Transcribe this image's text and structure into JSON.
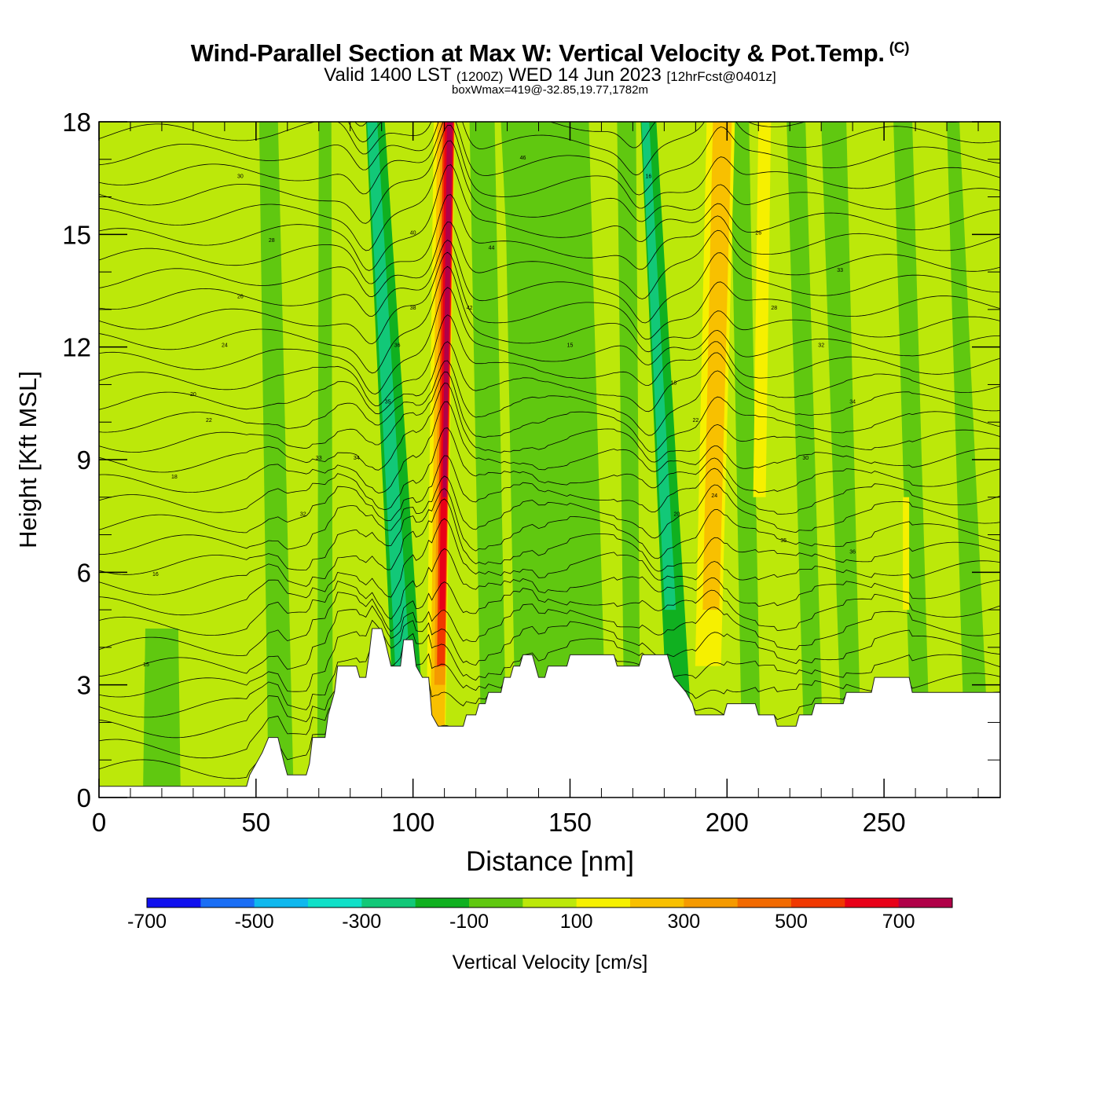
{
  "header": {
    "title_main": "Wind-Parallel Section at Max W: Vertical Velocity & Pot.Temp.",
    "title_mark": "(C)",
    "valid_a": "Valid 1400 LST",
    "valid_b": "(1200Z)",
    "valid_c": "WED 14 Jun 2023",
    "valid_d": "[12hrFcst@0401z]",
    "box_info": "boxWmax=419@-32.85,19.77,1782m"
  },
  "chart_data": {
    "type": "heatmap",
    "xlabel": "Distance [nm]",
    "ylabel": "Height [Kft MSL]",
    "xlim": [
      0,
      287
    ],
    "ylim": [
      0,
      18
    ],
    "x_ticks": [
      0,
      50,
      100,
      150,
      200,
      250
    ],
    "y_ticks": [
      0,
      3,
      6,
      9,
      12,
      15,
      18
    ],
    "colorbar": {
      "label": "Vertical Velocity [cm/s]",
      "tick_labels": [
        "-700",
        "-500",
        "-300",
        "-100",
        "100",
        "300",
        "500",
        "700"
      ],
      "colors": [
        "#1010ee",
        "#1a6ef5",
        "#0fb8ee",
        "#10e0c8",
        "#12c878",
        "#10b020",
        "#60c810",
        "#bce80a",
        "#f6f000",
        "#f8c000",
        "#f59a00",
        "#f26a00",
        "#f03800",
        "#e80018",
        "#b00048"
      ]
    },
    "updraft_bands": [
      {
        "x_center": 109,
        "w_max": 750
      },
      {
        "x_center": 195,
        "w_max": 350
      }
    ],
    "downdraft_bands": [
      {
        "x_center": 95,
        "w_min": -380
      },
      {
        "x_center": 182,
        "w_min": -300
      }
    ],
    "terrain": [
      [
        0,
        0.3
      ],
      [
        47,
        0.3
      ],
      [
        48,
        0.6
      ],
      [
        50,
        0.9
      ],
      [
        52,
        1.2
      ],
      [
        54,
        1.6
      ],
      [
        57,
        1.6
      ],
      [
        59,
        0.9
      ],
      [
        60,
        0.6
      ],
      [
        66,
        0.6
      ],
      [
        67,
        0.9
      ],
      [
        68,
        1.6
      ],
      [
        72,
        1.6
      ],
      [
        73,
        2.2
      ],
      [
        75,
        2.8
      ],
      [
        76,
        3.5
      ],
      [
        82,
        3.5
      ],
      [
        83,
        3.2
      ],
      [
        85,
        3.2
      ],
      [
        86,
        3.8
      ],
      [
        87,
        4.5
      ],
      [
        90,
        4.5
      ],
      [
        91,
        4.2
      ],
      [
        93,
        3.5
      ],
      [
        96,
        3.5
      ],
      [
        97,
        4.2
      ],
      [
        100,
        4.2
      ],
      [
        101,
        3.5
      ],
      [
        103,
        3.2
      ],
      [
        105,
        3.2
      ],
      [
        106,
        2.2
      ],
      [
        108,
        1.9
      ],
      [
        116,
        1.9
      ],
      [
        117,
        2.2
      ],
      [
        120,
        2.2
      ],
      [
        121,
        2.5
      ],
      [
        123,
        2.5
      ],
      [
        124,
        2.8
      ],
      [
        128,
        2.8
      ],
      [
        129,
        3.2
      ],
      [
        131,
        3.2
      ],
      [
        132,
        3.5
      ],
      [
        134,
        3.5
      ],
      [
        135,
        3.8
      ],
      [
        138,
        3.8
      ],
      [
        139,
        3.5
      ],
      [
        140,
        3.2
      ],
      [
        142,
        3.2
      ],
      [
        143,
        3.5
      ],
      [
        149,
        3.5
      ],
      [
        150,
        3.8
      ],
      [
        164,
        3.8
      ],
      [
        165,
        3.5
      ],
      [
        172,
        3.5
      ],
      [
        173,
        3.8
      ],
      [
        181,
        3.8
      ],
      [
        182,
        3.5
      ],
      [
        183,
        3.2
      ],
      [
        187,
        2.8
      ],
      [
        189,
        2.5
      ],
      [
        190,
        2.2
      ],
      [
        199,
        2.2
      ],
      [
        200,
        2.5
      ],
      [
        209,
        2.5
      ],
      [
        210,
        2.2
      ],
      [
        215,
        2.2
      ],
      [
        216,
        1.9
      ],
      [
        222,
        1.9
      ],
      [
        223,
        2.2
      ],
      [
        227,
        2.2
      ],
      [
        228,
        2.5
      ],
      [
        237,
        2.5
      ],
      [
        238,
        2.8
      ],
      [
        246,
        2.8
      ],
      [
        247,
        3.2
      ],
      [
        258,
        3.2
      ],
      [
        259,
        2.8
      ],
      [
        287,
        2.8
      ]
    ],
    "theta_labels": [
      "15",
      "16",
      "18",
      "20",
      "22",
      "24",
      "26",
      "28",
      "30",
      "32",
      "33",
      "34",
      "35",
      "36",
      "38",
      "40",
      "42",
      "44",
      "46"
    ]
  }
}
